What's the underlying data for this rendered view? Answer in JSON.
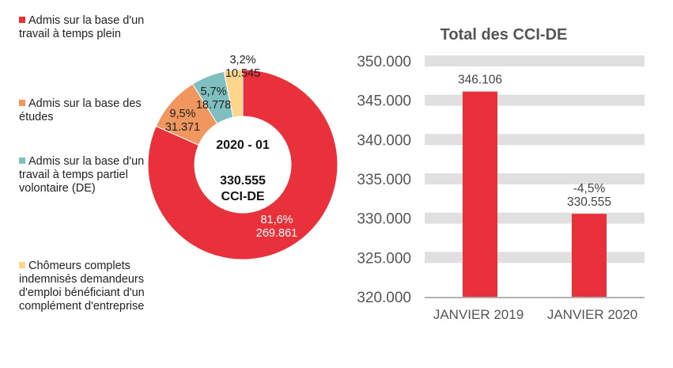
{
  "chart_data": [
    {
      "type": "pie",
      "donut": true,
      "center_title": "2020 - 01",
      "center_value": "330.555",
      "center_unit": "CCI-DE",
      "slices": [
        {
          "name": "Admis sur la base d'un travail à temps plein",
          "value": 269861,
          "value_label": "269.861",
          "percent_label": "81,6%",
          "color": "#E8313A"
        },
        {
          "name": "Admis sur la base des études",
          "value": 31371,
          "value_label": "31.371",
          "percent_label": "9,5%",
          "color": "#F0965F"
        },
        {
          "name": "Admis sur la base d'un travail à temps partiel volontaire (DE)",
          "value": 18778,
          "value_label": "18.778",
          "percent_label": "5,7%",
          "color": "#7FBFBF"
        },
        {
          "name": "Chômeurs complets indemnisés demandeurs d'emploi bénéficiant d'un complément d'entreprise",
          "value": 10545,
          "value_label": "10.545",
          "percent_label": "3,2%",
          "color": "#FDD68E"
        }
      ],
      "legend_placement": "left"
    },
    {
      "type": "bar",
      "title": "Total des CCI-DE",
      "categories": [
        "JANVIER 2019",
        "JANVIER 2020"
      ],
      "values": [
        346106,
        330555
      ],
      "data_labels": [
        "346.106",
        "330.555"
      ],
      "change_labels": [
        "",
        "-4,5%"
      ],
      "ylim": [
        320000,
        350000
      ],
      "yticks": [
        320000,
        325000,
        330000,
        335000,
        340000,
        345000,
        350000
      ],
      "ytick_labels": [
        "320.000",
        "325.000",
        "330.000",
        "335.000",
        "340.000",
        "345.000",
        "350.000"
      ],
      "color": "#E8313A",
      "grid": true
    }
  ]
}
